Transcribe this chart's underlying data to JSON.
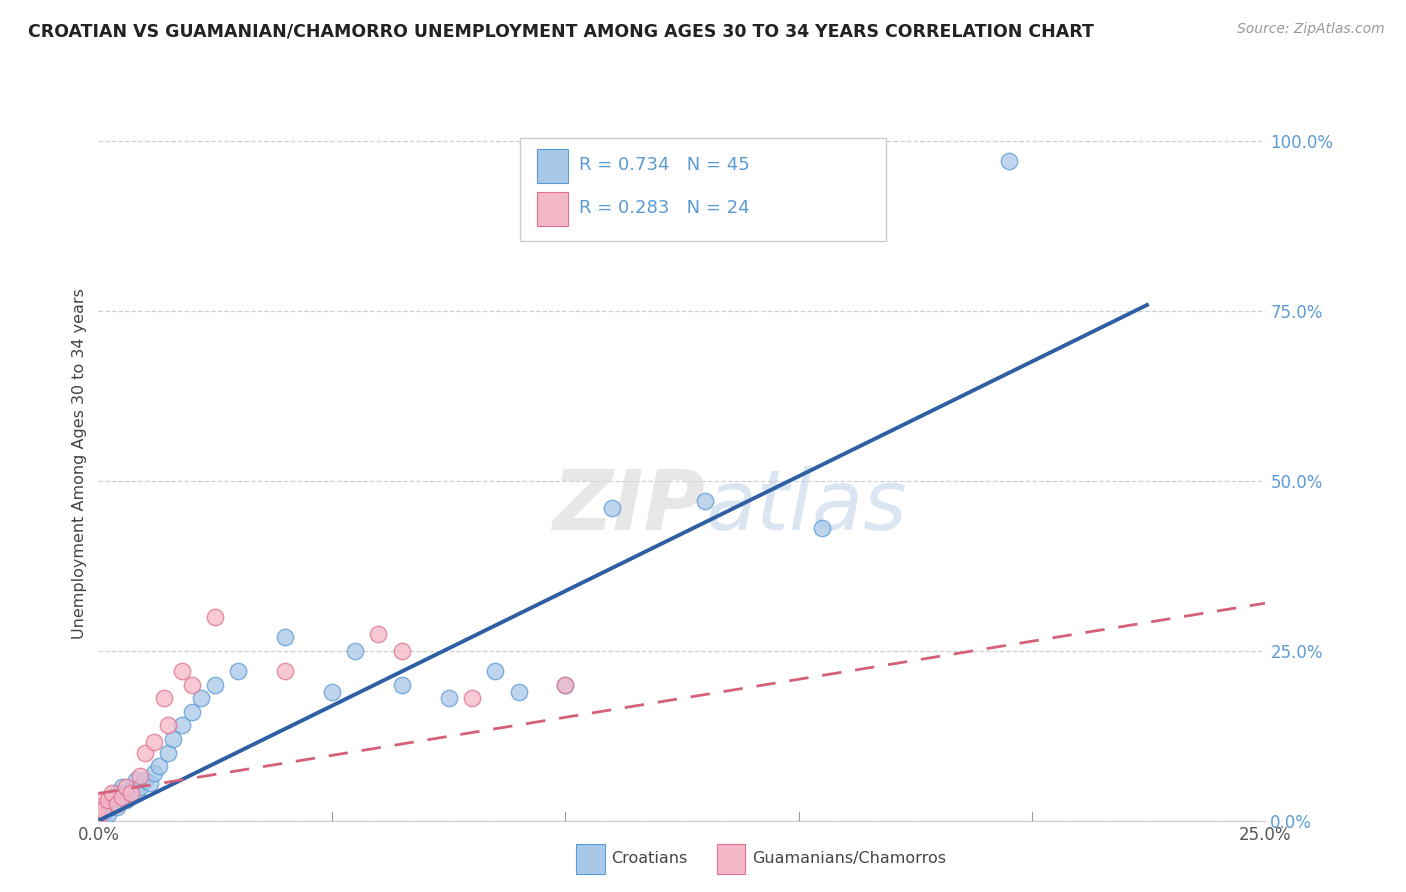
{
  "title": "CROATIAN VS GUAMANIAN/CHAMORRO UNEMPLOYMENT AMONG AGES 30 TO 34 YEARS CORRELATION CHART",
  "source": "Source: ZipAtlas.com",
  "ylabel": "Unemployment Among Ages 30 to 34 years",
  "ytick_labels": [
    "0.0%",
    "25.0%",
    "50.0%",
    "75.0%",
    "100.0%"
  ],
  "ytick_positions": [
    0.0,
    0.25,
    0.5,
    0.75,
    1.0
  ],
  "xtick_labels": [
    "0.0%",
    "25.0%"
  ],
  "xtick_positions": [
    0.0,
    0.25
  ],
  "xlim": [
    0.0,
    0.25
  ],
  "ylim": [
    0.0,
    1.05
  ],
  "croatian_R": 0.734,
  "croatian_N": 45,
  "guamanian_R": 0.283,
  "guamanian_N": 24,
  "legend_croatians": "Croatians",
  "legend_guamanians": "Guamanians/Chamorros",
  "color_croatian_fill": "#a8c8e8",
  "color_croatian_edge": "#5b9bd5",
  "color_guamanian_fill": "#f5b8c8",
  "color_guamanian_edge": "#e07090",
  "color_line_croatian": "#2e5fa3",
  "color_line_guamanian": "#d4607a",
  "color_grid": "#d0d0d0",
  "color_ytick": "#5b9bd5",
  "watermark_zip": "ZIP",
  "watermark_atlas": "atlas",
  "cro_line_x0": 0.0,
  "cro_line_y0": 0.0,
  "cro_line_x1": 0.225,
  "cro_line_y1": 0.76,
  "gua_line_x0": 0.0,
  "gua_line_y0": 0.04,
  "gua_line_x1": 0.25,
  "gua_line_y1": 0.32,
  "cro_x": [
    0.0,
    0.0,
    0.0,
    0.0,
    0.0,
    0.001,
    0.001,
    0.001,
    0.002,
    0.002,
    0.003,
    0.003,
    0.004,
    0.004,
    0.005,
    0.005,
    0.006,
    0.006,
    0.007,
    0.008,
    0.008,
    0.009,
    0.01,
    0.011,
    0.012,
    0.013,
    0.015,
    0.016,
    0.018,
    0.02,
    0.022,
    0.025,
    0.03,
    0.04,
    0.05,
    0.055,
    0.065,
    0.075,
    0.085,
    0.09,
    0.1,
    0.11,
    0.13,
    0.155,
    0.195
  ],
  "cro_y": [
    0.0,
    0.0,
    0.0,
    0.01,
    0.02,
    0.0,
    0.01,
    0.02,
    0.01,
    0.03,
    0.02,
    0.03,
    0.02,
    0.04,
    0.03,
    0.05,
    0.03,
    0.04,
    0.045,
    0.04,
    0.06,
    0.05,
    0.06,
    0.055,
    0.07,
    0.08,
    0.1,
    0.12,
    0.14,
    0.16,
    0.18,
    0.2,
    0.22,
    0.27,
    0.19,
    0.25,
    0.2,
    0.18,
    0.22,
    0.19,
    0.2,
    0.46,
    0.47,
    0.43,
    0.97
  ],
  "gua_x": [
    0.0,
    0.0,
    0.0,
    0.0,
    0.001,
    0.002,
    0.003,
    0.004,
    0.005,
    0.006,
    0.007,
    0.009,
    0.01,
    0.012,
    0.014,
    0.015,
    0.018,
    0.02,
    0.025,
    0.04,
    0.06,
    0.065,
    0.08,
    0.1
  ],
  "gua_y": [
    0.0,
    0.01,
    0.02,
    0.03,
    0.015,
    0.03,
    0.04,
    0.025,
    0.035,
    0.05,
    0.04,
    0.065,
    0.1,
    0.115,
    0.18,
    0.14,
    0.22,
    0.2,
    0.3,
    0.22,
    0.275,
    0.25,
    0.18,
    0.2
  ]
}
